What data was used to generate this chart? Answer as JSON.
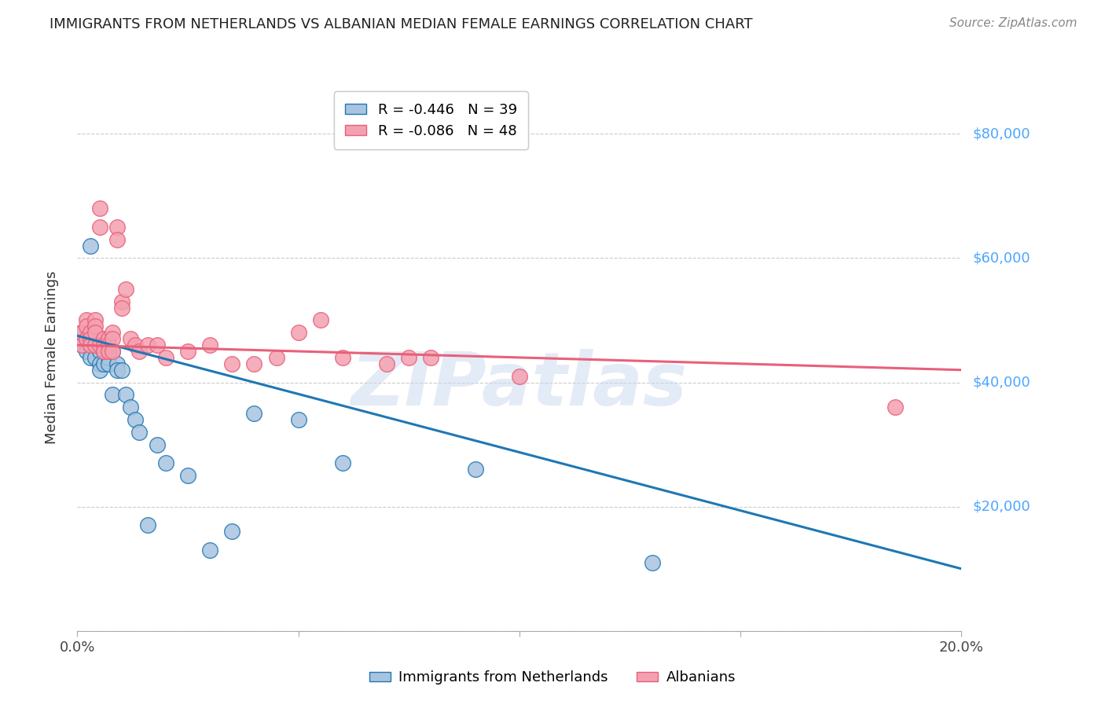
{
  "title": "IMMIGRANTS FROM NETHERLANDS VS ALBANIAN MEDIAN FEMALE EARNINGS CORRELATION CHART",
  "source": "Source: ZipAtlas.com",
  "ylabel": "Median Female Earnings",
  "xlim": [
    0.0,
    0.2
  ],
  "ylim": [
    0,
    88000
  ],
  "yticks": [
    0,
    20000,
    40000,
    60000,
    80000
  ],
  "ytick_labels": [
    "",
    "$20,000",
    "$40,000",
    "$60,000",
    "$80,000"
  ],
  "xticks": [
    0.0,
    0.05,
    0.1,
    0.15,
    0.2
  ],
  "xtick_labels": [
    "0.0%",
    "",
    "",
    "",
    "20.0%"
  ],
  "legend_entries": [
    {
      "label": "Immigrants from Netherlands",
      "R": -0.446,
      "N": 39,
      "color": "#a8c4e0"
    },
    {
      "label": "Albanians",
      "R": -0.086,
      "N": 48,
      "color": "#f4a0b0"
    }
  ],
  "blue_x": [
    0.001,
    0.001,
    0.002,
    0.002,
    0.003,
    0.003,
    0.003,
    0.004,
    0.004,
    0.004,
    0.005,
    0.005,
    0.005,
    0.005,
    0.006,
    0.006,
    0.006,
    0.007,
    0.007,
    0.008,
    0.008,
    0.009,
    0.009,
    0.01,
    0.011,
    0.012,
    0.013,
    0.014,
    0.016,
    0.018,
    0.02,
    0.025,
    0.03,
    0.035,
    0.04,
    0.05,
    0.06,
    0.09,
    0.13
  ],
  "blue_y": [
    48000,
    46000,
    47000,
    45000,
    62000,
    46000,
    44000,
    47000,
    46000,
    44000,
    47000,
    45000,
    43000,
    42000,
    46000,
    45000,
    43000,
    44000,
    43000,
    45000,
    38000,
    43000,
    42000,
    42000,
    38000,
    36000,
    34000,
    32000,
    17000,
    30000,
    27000,
    25000,
    13000,
    16000,
    35000,
    34000,
    27000,
    26000,
    11000
  ],
  "pink_x": [
    0.001,
    0.001,
    0.002,
    0.002,
    0.002,
    0.003,
    0.003,
    0.003,
    0.004,
    0.004,
    0.004,
    0.004,
    0.005,
    0.005,
    0.005,
    0.006,
    0.006,
    0.006,
    0.007,
    0.007,
    0.007,
    0.008,
    0.008,
    0.008,
    0.009,
    0.009,
    0.01,
    0.01,
    0.011,
    0.012,
    0.013,
    0.014,
    0.016,
    0.018,
    0.02,
    0.025,
    0.03,
    0.035,
    0.04,
    0.045,
    0.05,
    0.055,
    0.06,
    0.07,
    0.075,
    0.08,
    0.1,
    0.185
  ],
  "pink_y": [
    46000,
    48000,
    47000,
    50000,
    49000,
    48000,
    47000,
    46000,
    46000,
    50000,
    49000,
    48000,
    68000,
    65000,
    46000,
    47000,
    46000,
    45000,
    47000,
    46000,
    45000,
    48000,
    47000,
    45000,
    65000,
    63000,
    53000,
    52000,
    55000,
    47000,
    46000,
    45000,
    46000,
    46000,
    44000,
    45000,
    46000,
    43000,
    43000,
    44000,
    48000,
    50000,
    44000,
    43000,
    44000,
    44000,
    41000,
    36000
  ],
  "blue_line_color": "#1f77b4",
  "pink_line_color": "#e8607a",
  "watermark": "ZIPatlas",
  "background_color": "#ffffff",
  "grid_color": "#cccccc"
}
